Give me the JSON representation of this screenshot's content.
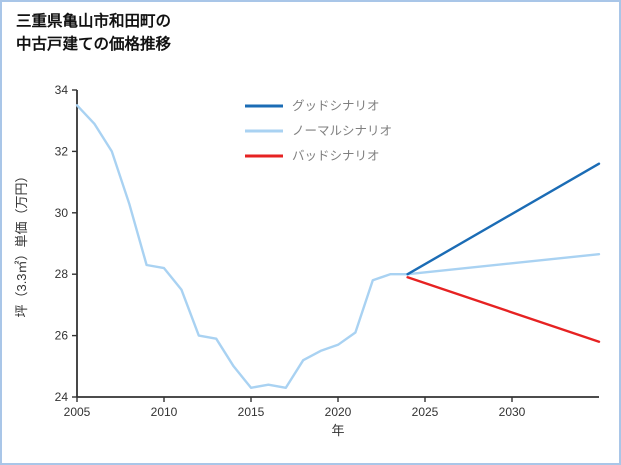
{
  "frame": {
    "border_color": "#a9c6e8",
    "background": "#ffffff"
  },
  "header": {
    "title_line1": "三重県亀山市和田町の",
    "title_line2": "中古戸建ての価格推移"
  },
  "chart_data": {
    "type": "line",
    "title": "三重県亀山市和田町の中古戸建ての価格推移",
    "xlabel": "年",
    "ylabel": "坪（3.3㎡）単価（万円）",
    "xlim": [
      2005,
      2035
    ],
    "ylim": [
      24,
      34
    ],
    "xticks": [
      2005,
      2010,
      2015,
      2020,
      2025,
      2030
    ],
    "yticks": [
      24,
      26,
      28,
      30,
      32,
      34
    ],
    "grid": false,
    "axis_color": "#333333",
    "tick_label_color": "#333333",
    "legend": {
      "position": "top-center",
      "text_color": "#7f7f7f"
    },
    "series": [
      {
        "name": "グッドシナリオ",
        "color": "#1b6cb5",
        "width": 2.4,
        "x": [
          2024,
          2035
        ],
        "y": [
          28.0,
          31.6
        ]
      },
      {
        "name": "ノーマルシナリオ",
        "color": "#a9d2f2",
        "width": 2.4,
        "x": [
          2005,
          2006,
          2007,
          2008,
          2009,
          2010,
          2011,
          2012,
          2013,
          2014,
          2015,
          2016,
          2017,
          2018,
          2019,
          2020,
          2021,
          2022,
          2023,
          2024,
          2035
        ],
        "y": [
          33.5,
          32.9,
          32.0,
          30.3,
          28.3,
          28.2,
          27.5,
          26.0,
          25.9,
          25.0,
          24.3,
          24.4,
          24.3,
          25.2,
          25.5,
          25.7,
          26.1,
          27.8,
          28.0,
          28.0,
          28.65
        ]
      },
      {
        "name": "バッドシナリオ",
        "color": "#e62222",
        "width": 2.4,
        "x": [
          2024,
          2035
        ],
        "y": [
          27.9,
          25.8
        ]
      }
    ]
  }
}
